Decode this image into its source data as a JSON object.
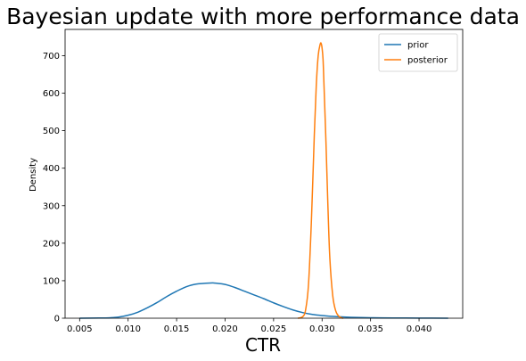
{
  "chart_data": {
    "type": "line",
    "title": "Bayesian update with more performance data",
    "xlabel": "CTR",
    "ylabel": "Density",
    "xlim": [
      0.0035,
      0.0445
    ],
    "ylim": [
      0,
      770
    ],
    "x_ticks": [
      0.005,
      0.01,
      0.015,
      0.02,
      0.025,
      0.03,
      0.035,
      0.04
    ],
    "x_tick_labels": [
      "0.005",
      "0.010",
      "0.015",
      "0.020",
      "0.025",
      "0.030",
      "0.035",
      "0.040"
    ],
    "y_ticks": [
      0,
      100,
      200,
      300,
      400,
      500,
      600,
      700
    ],
    "y_tick_labels": [
      "0",
      "100",
      "200",
      "300",
      "400",
      "500",
      "600",
      "700"
    ],
    "grid": false,
    "legend_position": "top-right",
    "series": [
      {
        "name": "prior",
        "color": "#1f77b4",
        "x": [
          0.005,
          0.007,
          0.008,
          0.009,
          0.01,
          0.011,
          0.012,
          0.013,
          0.014,
          0.015,
          0.016,
          0.017,
          0.0185,
          0.019,
          0.02,
          0.021,
          0.022,
          0.023,
          0.024,
          0.025,
          0.026,
          0.027,
          0.028,
          0.029,
          0.03,
          0.031,
          0.032,
          0.033,
          0.034,
          0.035,
          0.036,
          0.038,
          0.04,
          0.043
        ],
        "y": [
          0,
          0.5,
          1,
          3,
          8,
          16,
          28,
          42,
          58,
          72,
          84,
          91,
          94,
          93.5,
          90,
          82,
          72,
          62,
          52,
          41,
          31,
          22,
          15,
          10,
          7,
          5,
          3.5,
          2.5,
          1.8,
          1.3,
          1,
          0.6,
          0.3,
          0
        ]
      },
      {
        "name": "posterior",
        "color": "#ff7f0e",
        "x": [
          0.0275,
          0.028,
          0.0283,
          0.0286,
          0.0289,
          0.0292,
          0.0294,
          0.0296,
          0.0298,
          0.0299,
          0.03,
          0.0301,
          0.0302,
          0.0304,
          0.0306,
          0.0308,
          0.0311,
          0.0314,
          0.0317,
          0.032,
          0.0322
        ],
        "y": [
          0,
          4,
          22,
          90,
          260,
          490,
          620,
          700,
          730,
          733,
          720,
          690,
          620,
          470,
          300,
          160,
          60,
          20,
          6,
          1,
          0
        ]
      }
    ]
  }
}
